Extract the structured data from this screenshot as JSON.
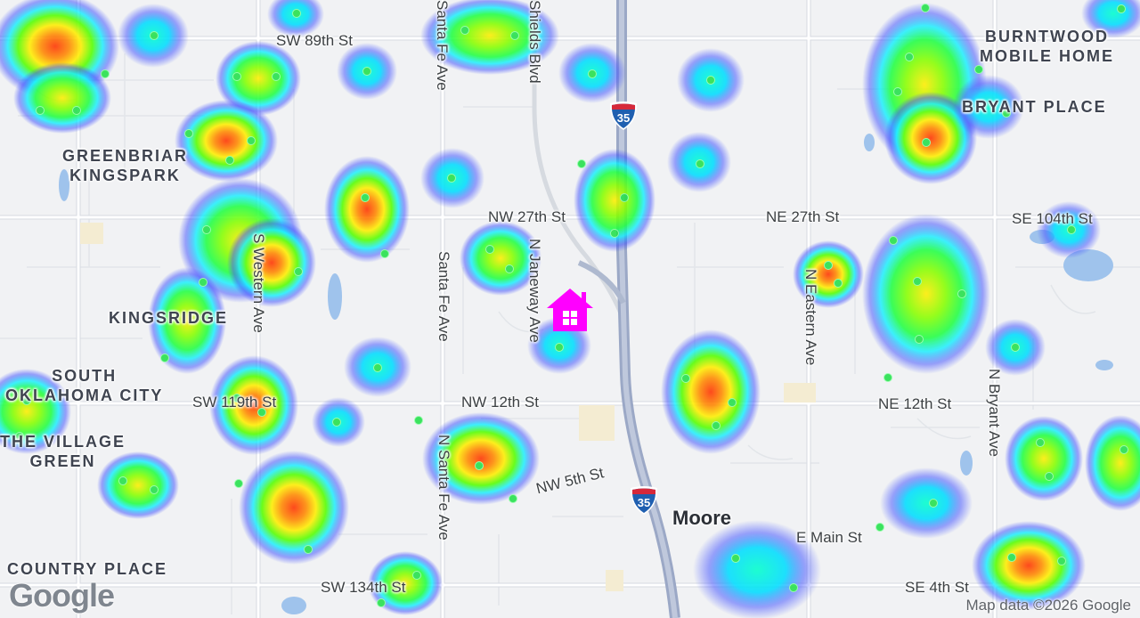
{
  "map": {
    "attribution": "Map data ©2026 Google",
    "logo": "Google",
    "marker_icon": "home-icon",
    "marker_color": "#ff00ff",
    "neighborhoods": [
      {
        "id": "burntwood",
        "text": "BURNTWOOD\nMOBILE HOME"
      },
      {
        "id": "bryant-place",
        "text": "BRYANT PLACE"
      },
      {
        "id": "greenbriar",
        "text": "GREENBRIAR\nKINGSPARK"
      },
      {
        "id": "kingsridge",
        "text": "KINGSRIDGE"
      },
      {
        "id": "south-okc",
        "text": "SOUTH\nOKLAHOMA CITY"
      },
      {
        "id": "village-green",
        "text": "THE VILLAGE\nGREEN"
      },
      {
        "id": "country-place",
        "text": "COUNTRY PLACE"
      }
    ],
    "streets": [
      {
        "id": "sw-89th",
        "text": "SW 89th St"
      },
      {
        "id": "santa-fe-top",
        "text": "Santa Fe Ave"
      },
      {
        "id": "shields",
        "text": "Shields Blvd"
      },
      {
        "id": "nw-27th",
        "text": "NW 27th St"
      },
      {
        "id": "ne-27th",
        "text": "NE 27th St"
      },
      {
        "id": "se-104th",
        "text": "SE 104th St"
      },
      {
        "id": "s-western",
        "text": "S Western Ave"
      },
      {
        "id": "santa-fe-mid",
        "text": "Santa Fe Ave"
      },
      {
        "id": "n-janeway",
        "text": "N Janeway Ave"
      },
      {
        "id": "n-eastern",
        "text": "N Eastern Ave"
      },
      {
        "id": "sw-119th",
        "text": "SW 119th St"
      },
      {
        "id": "nw-12th",
        "text": "NW 12th St"
      },
      {
        "id": "ne-12th",
        "text": "NE 12th St"
      },
      {
        "id": "n-bryant",
        "text": "N Bryant Ave"
      },
      {
        "id": "n-santa-fe",
        "text": "N Santa Fe Ave"
      },
      {
        "id": "nw-5th",
        "text": "NW 5th St"
      },
      {
        "id": "e-main",
        "text": "E Main St"
      },
      {
        "id": "sw-134th",
        "text": "SW 134th St"
      },
      {
        "id": "se-4th",
        "text": "SE 4th St"
      }
    ],
    "city": "Moore",
    "interstate": "35",
    "heatmap_colors": [
      "#3333ff",
      "#00ffff",
      "#00ff00",
      "#ffff00",
      "#ff7f00",
      "#ff2200"
    ]
  }
}
